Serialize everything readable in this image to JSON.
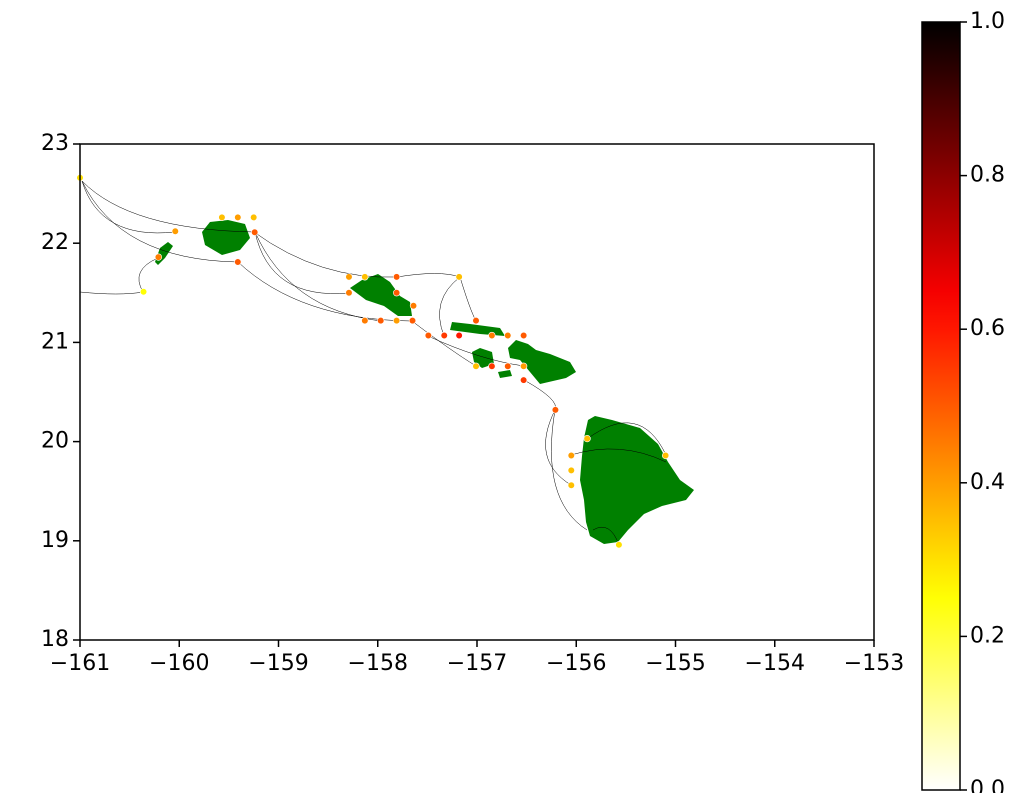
{
  "chart_data": {
    "type": "scatter",
    "x": [
      -160.04,
      -160.36,
      -160.21,
      -159.57,
      -159.41,
      -159.25,
      -159.24,
      -159.41,
      -158.29,
      -158.13,
      -157.81,
      -157.18,
      -157.81,
      -158.29,
      -158.13,
      -157.97,
      -157.81,
      -157.65,
      -157.64,
      -157.49,
      -157.33,
      -157.18,
      -157.01,
      -156.85,
      -156.69,
      -156.53,
      -157.01,
      -156.85,
      -156.69,
      -156.53,
      -156.53,
      -156.21,
      -155.89,
      -156.05,
      -156.05,
      -156.05,
      -155.1,
      -155.57,
      -161.0
    ],
    "values": [
      22.12,
      21.51,
      21.86,
      22.26,
      22.26,
      22.26,
      22.11,
      21.81,
      21.66,
      21.66,
      21.66,
      21.66,
      21.5,
      21.5,
      21.22,
      21.22,
      21.22,
      21.22,
      21.37,
      21.07,
      21.07,
      21.07,
      21.22,
      21.07,
      21.07,
      21.07,
      20.76,
      20.76,
      20.76,
      20.76,
      20.62,
      20.32,
      20.03,
      19.86,
      19.71,
      19.56,
      19.86,
      18.96,
      22.66
    ],
    "color_values": [
      0.4,
      0.25,
      0.45,
      0.35,
      0.4,
      0.35,
      0.5,
      0.5,
      0.4,
      0.35,
      0.5,
      0.35,
      0.5,
      0.45,
      0.45,
      0.5,
      0.4,
      0.5,
      0.45,
      0.5,
      0.55,
      0.6,
      0.5,
      0.45,
      0.45,
      0.5,
      0.35,
      0.55,
      0.5,
      0.4,
      0.55,
      0.5,
      0.35,
      0.4,
      0.35,
      0.35,
      0.35,
      0.3,
      0.3
    ],
    "colormap": "hot_r",
    "xlim": [
      -161,
      -153
    ],
    "xticks": [
      {
        "value": -161,
        "label": "−161"
      },
      {
        "value": -160,
        "label": "−160"
      },
      {
        "value": -159,
        "label": "−159"
      },
      {
        "value": -158,
        "label": "−158"
      },
      {
        "value": -157,
        "label": "−157"
      },
      {
        "value": -156,
        "label": "−156"
      },
      {
        "value": -155,
        "label": "−155"
      },
      {
        "value": -154,
        "label": "−154"
      },
      {
        "value": -153,
        "label": "−153"
      }
    ],
    "ylim": [
      18,
      23
    ],
    "yticks": [
      18,
      19,
      20,
      21,
      22,
      23
    ],
    "clim": [
      0,
      1
    ],
    "cticks": [
      {
        "value": 0,
        "label": "0.0"
      },
      0.2,
      0.4,
      0.6,
      0.8,
      {
        "value": 1,
        "label": "1.0"
      }
    ]
  }
}
